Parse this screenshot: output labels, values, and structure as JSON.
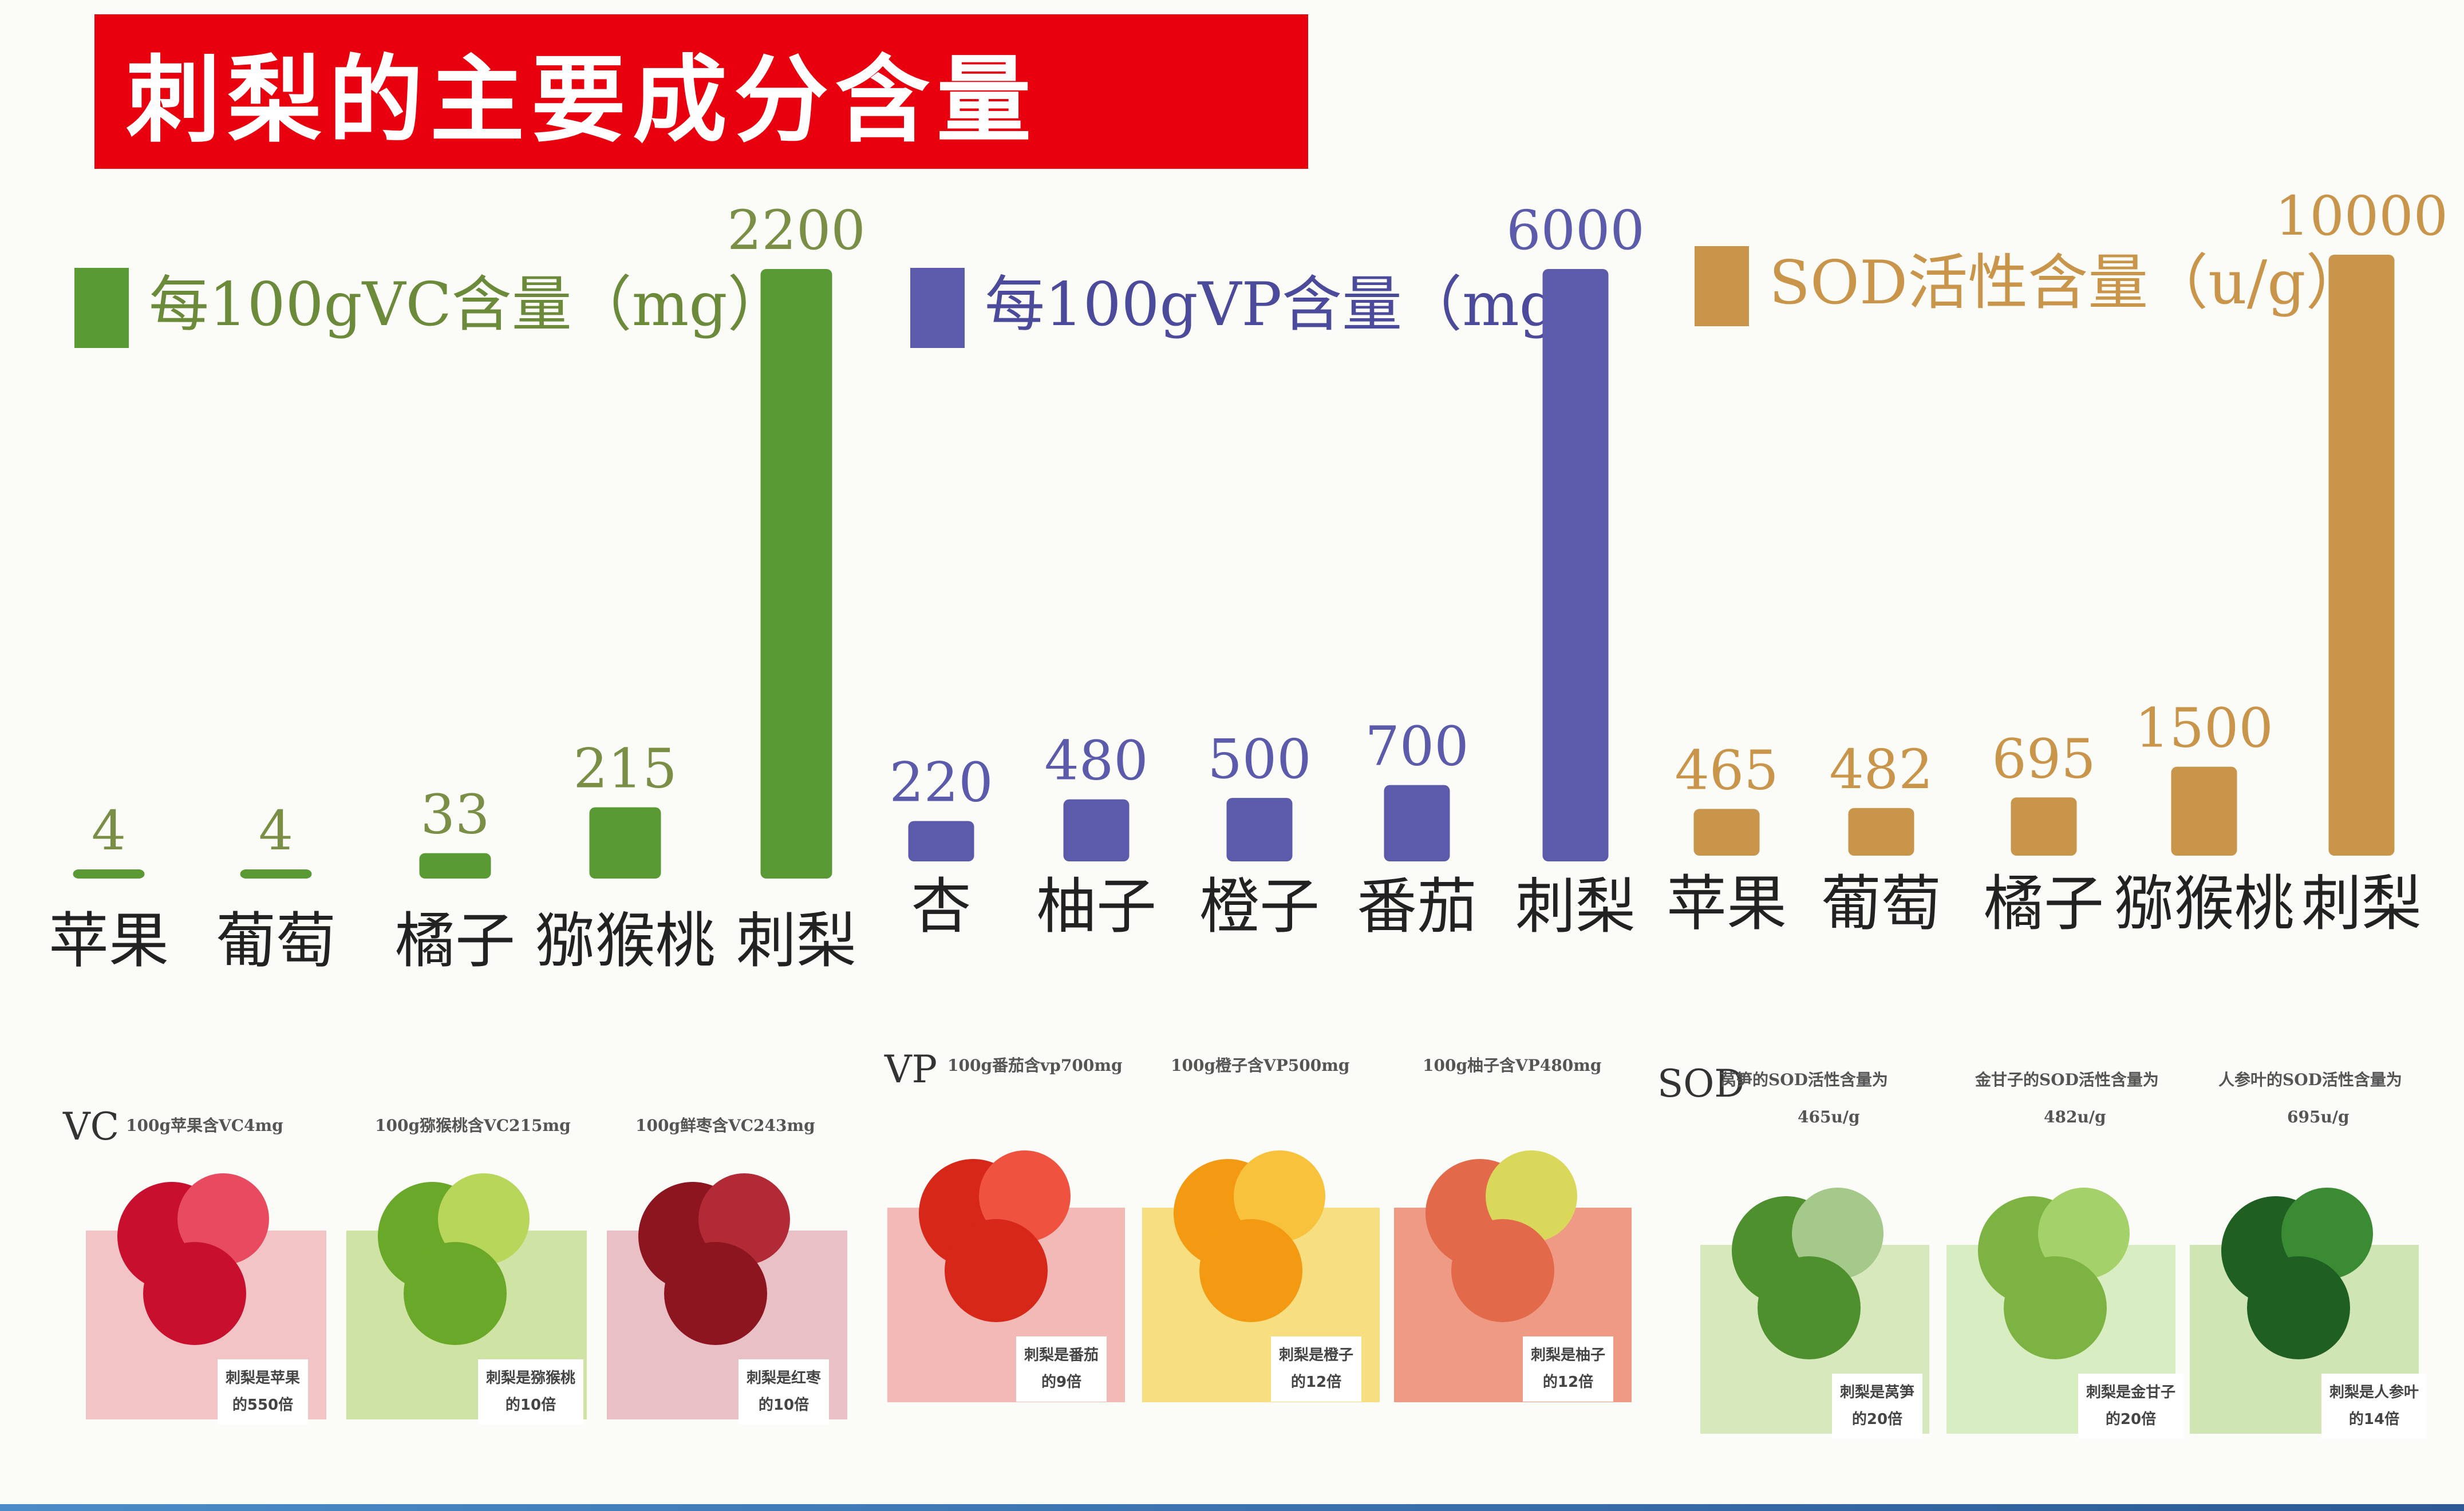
{
  "title": "刺梨的主要成分含量",
  "chart_data": [
    {
      "type": "bar",
      "legend": "每100gVC含量（mg）",
      "color": "#5a9a35",
      "categories": [
        "苹果",
        "葡萄",
        "橘子",
        "猕猴桃",
        "刺梨"
      ],
      "values": [
        4,
        4,
        33,
        215,
        2200
      ],
      "value_labels": [
        "4",
        "4",
        "33",
        "215",
        "2200"
      ]
    },
    {
      "type": "bar",
      "legend": "每100gVP含量（mg）",
      "color": "#5b5aab",
      "categories": [
        "杏",
        "柚子",
        "橙子",
        "番茄",
        "刺梨"
      ],
      "values": [
        220,
        480,
        500,
        700,
        6000
      ],
      "value_labels": [
        "220",
        "480",
        "500",
        "700",
        "6000"
      ]
    },
    {
      "type": "bar",
      "legend": "SOD活性含量（u/g）",
      "color": "#c9954a",
      "categories": [
        "苹果",
        "葡萄",
        "橘子",
        "猕猴桃",
        "刺梨"
      ],
      "values": [
        465,
        482,
        695,
        1500,
        10000
      ],
      "value_labels": [
        "465",
        "482",
        "695",
        "1500",
        "10000"
      ]
    }
  ],
  "panels": {
    "vc": {
      "head": "VC",
      "cards": [
        {
          "caption": "100g苹果含VC4mg",
          "tag1": "刺梨是苹果",
          "tag2": "的550倍",
          "bg": "#f2c4c6"
        },
        {
          "caption": "100g猕猴桃含VC215mg",
          "tag1": "刺梨是猕猴桃",
          "tag2": "的10倍",
          "bg": "#cfe3a4"
        },
        {
          "caption": "100g鲜枣含VC243mg",
          "tag1": "刺梨是红枣",
          "tag2": "的10倍",
          "bg": "#e8c0c6"
        }
      ]
    },
    "vp": {
      "head": "VP",
      "cards": [
        {
          "caption": "100g番茄含vp700mg",
          "tag1": "刺梨是番茄",
          "tag2": "的9倍",
          "bg": "#f3b9b6"
        },
        {
          "caption": "100g橙子含VP500mg",
          "tag1": "刺梨是橙子",
          "tag2": "的12倍",
          "bg": "#f7de80"
        },
        {
          "caption": "100g柚子含VP480mg",
          "tag1": "刺梨是柚子",
          "tag2": "的12倍",
          "bg": "#ef9a84"
        }
      ]
    },
    "sod": {
      "head": "SOD",
      "cards": [
        {
          "caption": "莴笋的SOD活性含量为",
          "caption2": "465u/g",
          "tag1": "刺梨是莴笋",
          "tag2": "的20倍",
          "bg": "#d7e8bd"
        },
        {
          "caption": "金甘子的SOD活性含量为",
          "caption2": "482u/g",
          "tag1": "刺梨是金甘子",
          "tag2": "的20倍",
          "bg": "#d8edc2"
        },
        {
          "caption": "人参叶的SOD活性含量为",
          "caption2": "695u/g",
          "tag1": "刺梨是人参叶",
          "tag2": "的14倍",
          "bg": "#cfe5b3"
        }
      ]
    }
  }
}
